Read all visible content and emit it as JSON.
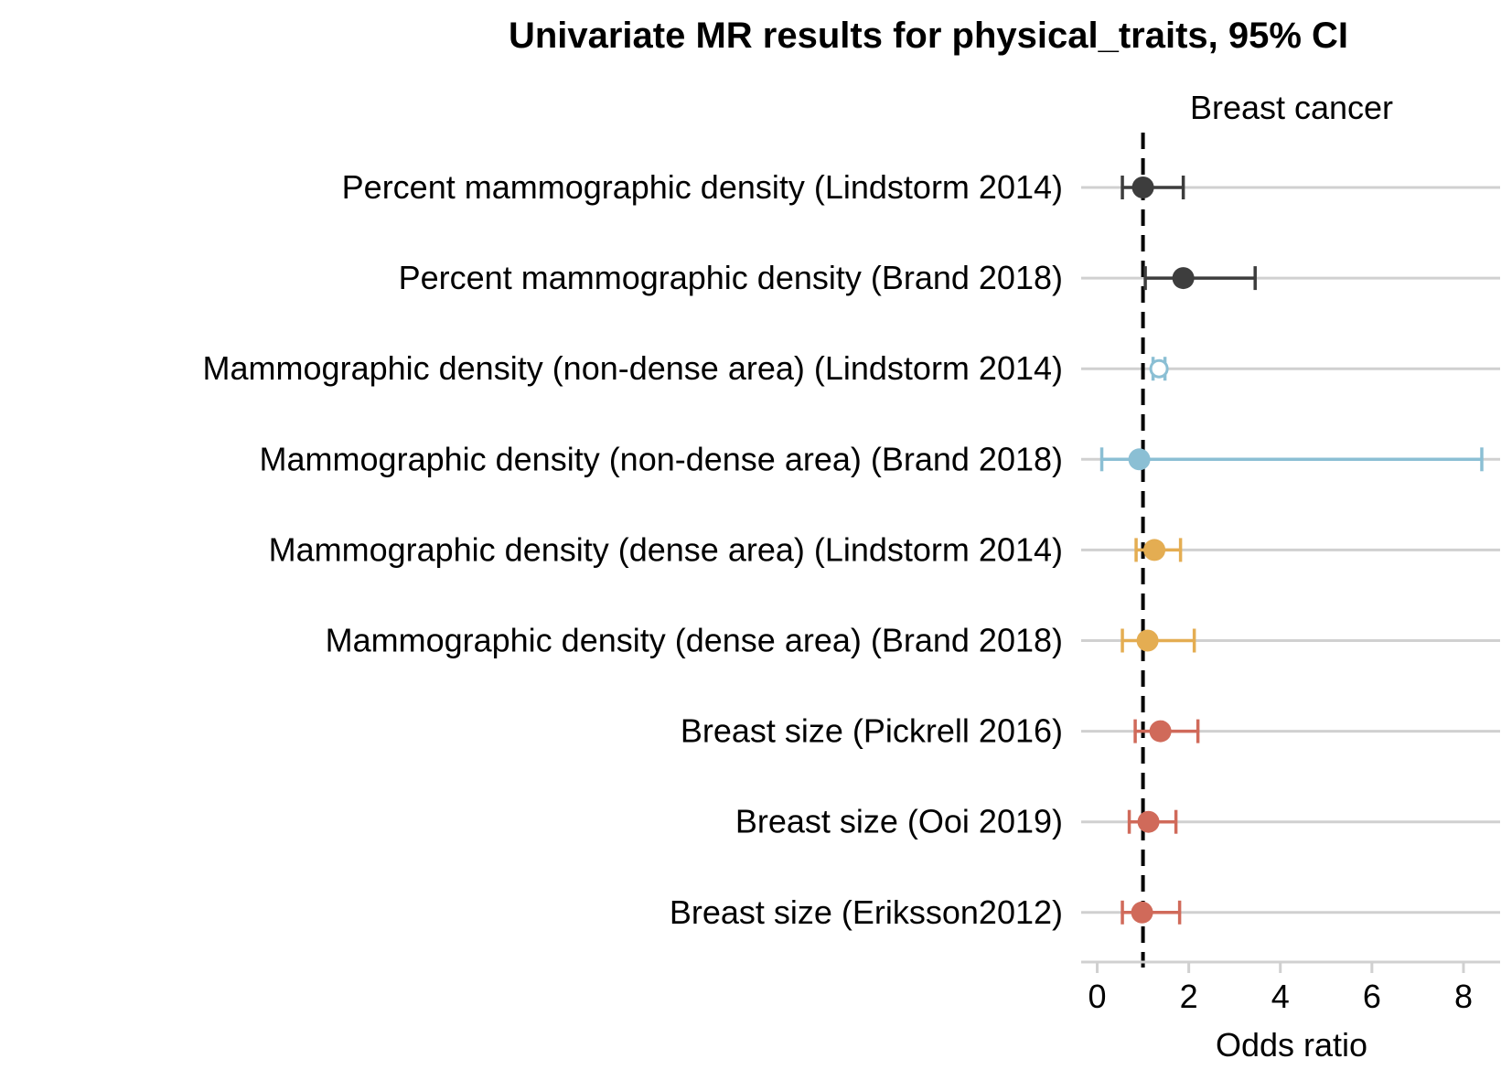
{
  "chart_data": {
    "type": "forest",
    "title": "Univariate MR results for physical_traits, 95% CI",
    "facet_label": "Breast cancer",
    "xlabel": "Odds ratio",
    "xlim": [
      -0.35,
      8.8
    ],
    "xticks": [
      0,
      2,
      4,
      6,
      8
    ],
    "reference_line": 1,
    "grid": "horizontal",
    "colors": {
      "dark": "#3d3d3d",
      "blue": "#8bbfd4",
      "orange": "#e4ad52",
      "red": "#d06a5a",
      "grid": "#d0d0d0"
    },
    "rows": [
      {
        "label": "Percent mammographic density (Lindstorm 2014)",
        "or": 1.0,
        "lo": 0.55,
        "hi": 1.88,
        "color": "dark"
      },
      {
        "label": "Percent mammographic density  (Brand 2018)",
        "or": 1.88,
        "lo": 1.05,
        "hi": 3.45,
        "color": "dark"
      },
      {
        "label": "Mammographic density (non-dense area) (Lindstorm 2014)",
        "or": 1.35,
        "lo": 1.22,
        "hi": 1.48,
        "color": "blue",
        "hollow": true
      },
      {
        "label": "Mammographic density (non-dense area) (Brand 2018)",
        "or": 0.92,
        "lo": 0.1,
        "hi": 8.4,
        "color": "blue"
      },
      {
        "label": "Mammographic density (dense area) (Lindstorm 2014)",
        "or": 1.25,
        "lo": 0.85,
        "hi": 1.82,
        "color": "orange"
      },
      {
        "label": "Mammographic density (dense area) (Brand 2018)",
        "or": 1.1,
        "lo": 0.55,
        "hi": 2.12,
        "color": "orange"
      },
      {
        "label": "Breast size (Pickrell 2016)",
        "or": 1.38,
        "lo": 0.83,
        "hi": 2.2,
        "color": "red"
      },
      {
        "label": "Breast size (Ooi 2019)",
        "or": 1.12,
        "lo": 0.7,
        "hi": 1.72,
        "color": "red"
      },
      {
        "label": "Breast size (Eriksson2012)",
        "or": 0.98,
        "lo": 0.55,
        "hi": 1.8,
        "color": "red"
      }
    ]
  }
}
